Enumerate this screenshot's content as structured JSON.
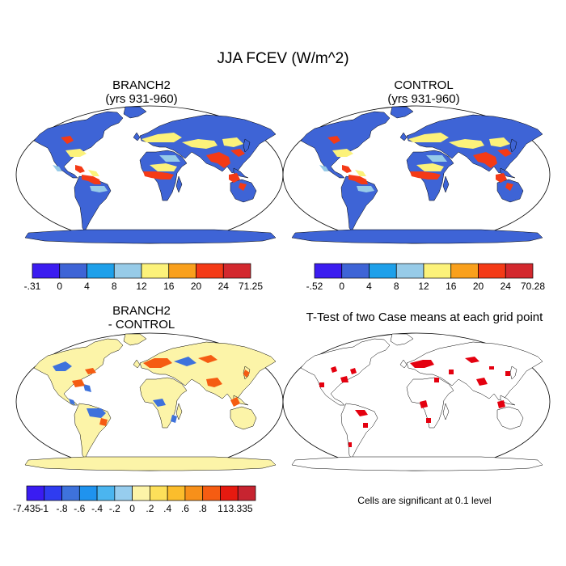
{
  "figure": {
    "title": "JJA FCEV (W/m^2)",
    "note": "Cells are significant at 0.1 level"
  },
  "panels": [
    {
      "id": "branch2",
      "title": "BRANCH2",
      "subtitle": "(yrs 931-960)"
    },
    {
      "id": "control",
      "title": "CONTROL",
      "subtitle": "(yrs 931-960)"
    },
    {
      "id": "diff",
      "title": "BRANCH2",
      "subtitle": "- CONTROL"
    },
    {
      "id": "ttest",
      "title": "T-Test of two Case means at each grid point",
      "subtitle": ""
    }
  ],
  "colorbars": {
    "branch2": {
      "labels": [
        "-.31",
        "0",
        "4",
        "8",
        "12",
        "16",
        "20",
        "24",
        "71.25"
      ],
      "colors": [
        "#3b1cf0",
        "#3e64d6",
        "#1ea0ea",
        "#97cbe8",
        "#fcf27a",
        "#f9a01c",
        "#f43a16",
        "#d3282e"
      ]
    },
    "control": {
      "labels": [
        "-.52",
        "0",
        "4",
        "8",
        "12",
        "16",
        "20",
        "24",
        "70.28"
      ],
      "colors": [
        "#3b1cf0",
        "#3e64d6",
        "#1ea0ea",
        "#97cbe8",
        "#fcf27a",
        "#f9a01c",
        "#f43a16",
        "#d3282e"
      ]
    },
    "diff": {
      "labels": [
        "-7.435",
        "-1",
        "-.8",
        "-.6",
        "-.4",
        "-.2",
        "0",
        ".2",
        ".4",
        ".6",
        ".8",
        "1",
        "13.335"
      ],
      "colors": [
        "#3a1cf2",
        "#2f3cf0",
        "#3e72dc",
        "#1f93ee",
        "#4bb5ef",
        "#97cdee",
        "#fcf4a8",
        "#fde05a",
        "#fbbd2c",
        "#f7901a",
        "#f55c12",
        "#e61a10",
        "#c72430"
      ]
    }
  },
  "map_colors": {
    "ocean": "#ffffff",
    "land_low": "#3e64d6",
    "land_diff_base": "#fcf4a8",
    "significance": "#e4000f"
  }
}
